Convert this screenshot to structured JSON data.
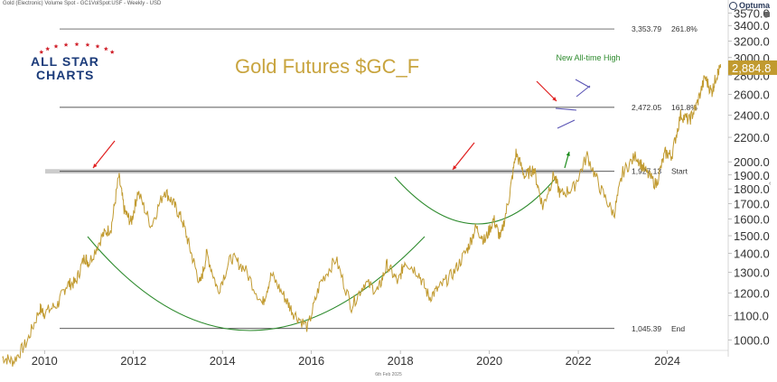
{
  "header": {
    "instrument": "Gold (Electronic) Volume Spot - GC1VolSpot:USF - Weekly - USD",
    "brand": "Optuma",
    "date_footer": "6th Feb 2025"
  },
  "logo": {
    "line1": "ALL STAR",
    "line2": "CHARTS"
  },
  "colors": {
    "price": "#c19a2f",
    "title": "#c8a43e",
    "curve": "#2e8b2e",
    "red_arrow": "#e02020",
    "green_arrow": "#1a8a1a",
    "fib_line": "#222222",
    "start_band": "#cccccc",
    "current_tag_bg": "#c19a2f",
    "wedge": "#5b55b5",
    "axis_text": "#333333"
  },
  "chart_data": {
    "type": "line",
    "title": "Gold Futures $GC_F",
    "yscale": "log",
    "ylim": [
      960,
      3650
    ],
    "xlim": [
      2009.0,
      2025.35
    ],
    "y_ticks": [
      "1000.0",
      "1100.0",
      "1200.0",
      "1300.0",
      "1400.0",
      "1500.0",
      "1600.0",
      "1700.0",
      "1800.0",
      "1900.0",
      "2000.0",
      "2200.0",
      "2400.0",
      "2600.0",
      "2800.0",
      "3000.0",
      "3200.0",
      "3400.0",
      "3570.0"
    ],
    "y_tick_values": [
      1000,
      1100,
      1200,
      1300,
      1400,
      1500,
      1600,
      1700,
      1800,
      1900,
      2000,
      2200,
      2400,
      2600,
      2800,
      3000,
      3200,
      3400,
      3570
    ],
    "x_ticks": [
      "2010",
      "2012",
      "2014",
      "2016",
      "2018",
      "2020",
      "2022",
      "2024"
    ],
    "x_tick_values": [
      2010,
      2012,
      2014,
      2016,
      2018,
      2020,
      2022,
      2024
    ],
    "current_value": "2,884.8",
    "current_value_num": 2884.8,
    "levels": [
      {
        "value": 3353.79,
        "value_label": "3,353.79",
        "tag": "261.8%"
      },
      {
        "value": 2472.05,
        "value_label": "2,472.05",
        "tag": "161.8%"
      },
      {
        "value": 1927.13,
        "value_label": "1,927.13",
        "tag": "Start"
      },
      {
        "value": 1045.39,
        "value_label": "1,045.39",
        "tag": "End"
      }
    ],
    "annotation": "New All-time High",
    "series": [
      {
        "points": [
          [
            2009.05,
            935
          ],
          [
            2009.3,
            920
          ],
          [
            2009.6,
            990
          ],
          [
            2009.9,
            1130
          ],
          [
            2010.0,
            1110
          ],
          [
            2010.3,
            1150
          ],
          [
            2010.5,
            1240
          ],
          [
            2010.7,
            1250
          ],
          [
            2010.9,
            1380
          ],
          [
            2011.0,
            1350
          ],
          [
            2011.3,
            1500
          ],
          [
            2011.5,
            1550
          ],
          [
            2011.67,
            1890
          ],
          [
            2011.8,
            1650
          ],
          [
            2011.95,
            1580
          ],
          [
            2012.1,
            1780
          ],
          [
            2012.4,
            1560
          ],
          [
            2012.7,
            1790
          ],
          [
            2012.9,
            1700
          ],
          [
            2013.1,
            1590
          ],
          [
            2013.3,
            1400
          ],
          [
            2013.5,
            1240
          ],
          [
            2013.65,
            1400
          ],
          [
            2013.9,
            1210
          ],
          [
            2014.2,
            1380
          ],
          [
            2014.5,
            1320
          ],
          [
            2014.9,
            1150
          ],
          [
            2015.1,
            1290
          ],
          [
            2015.4,
            1180
          ],
          [
            2015.6,
            1110
          ],
          [
            2015.92,
            1050
          ],
          [
            2016.2,
            1250
          ],
          [
            2016.55,
            1370
          ],
          [
            2016.9,
            1140
          ],
          [
            2017.2,
            1250
          ],
          [
            2017.5,
            1210
          ],
          [
            2017.7,
            1340
          ],
          [
            2017.95,
            1250
          ],
          [
            2018.1,
            1360
          ],
          [
            2018.4,
            1300
          ],
          [
            2018.65,
            1180
          ],
          [
            2018.9,
            1230
          ],
          [
            2019.2,
            1300
          ],
          [
            2019.5,
            1420
          ],
          [
            2019.7,
            1550
          ],
          [
            2019.9,
            1470
          ],
          [
            2020.1,
            1600
          ],
          [
            2020.25,
            1480
          ],
          [
            2020.45,
            1750
          ],
          [
            2020.6,
            2070
          ],
          [
            2020.8,
            1890
          ],
          [
            2021.0,
            1950
          ],
          [
            2021.2,
            1680
          ],
          [
            2021.45,
            1900
          ],
          [
            2021.6,
            1760
          ],
          [
            2021.9,
            1810
          ],
          [
            2022.2,
            2050
          ],
          [
            2022.5,
            1800
          ],
          [
            2022.8,
            1630
          ],
          [
            2023.0,
            1920
          ],
          [
            2023.3,
            2050
          ],
          [
            2023.5,
            1930
          ],
          [
            2023.75,
            1830
          ],
          [
            2023.95,
            2070
          ],
          [
            2024.1,
            2050
          ],
          [
            2024.3,
            2400
          ],
          [
            2024.5,
            2350
          ],
          [
            2024.65,
            2480
          ],
          [
            2024.85,
            2780
          ],
          [
            2025.0,
            2620
          ],
          [
            2025.1,
            2790
          ],
          [
            2025.2,
            2884.8
          ]
        ]
      }
    ]
  }
}
